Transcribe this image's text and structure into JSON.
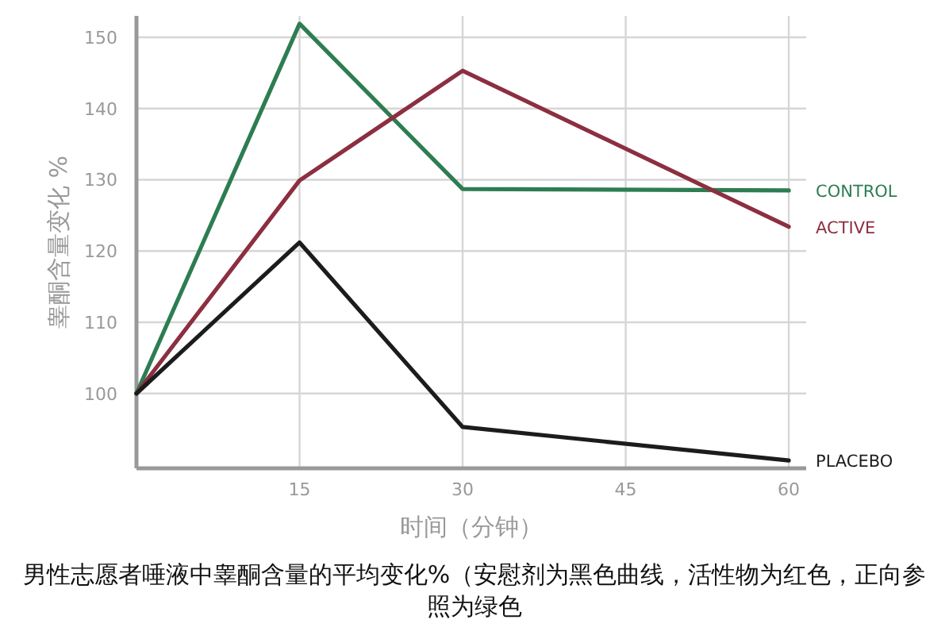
{
  "chart_data": {
    "type": "line",
    "xlabel": "时间（分钟）",
    "ylabel": "睾酮含量变化 %",
    "x": [
      0,
      15,
      30,
      60
    ],
    "series": [
      {
        "name": "CONTROL",
        "color": "#2e7d52",
        "values": [
          100,
          151.9,
          128.7,
          128.5
        ]
      },
      {
        "name": "ACTIVE",
        "color": "#8c2f40",
        "values": [
          100,
          129.9,
          145.3,
          123.4
        ]
      },
      {
        "name": "PLACEBO",
        "color": "#1c1c1c",
        "values": [
          100,
          121.2,
          95.3,
          90.6
        ]
      }
    ],
    "xlim": [
      0,
      61.6
    ],
    "ylim": [
      89.5,
      153
    ],
    "xticks": [
      15,
      30,
      45,
      60
    ],
    "yticks": [
      100,
      110,
      120,
      130,
      140,
      150
    ],
    "grid": true,
    "legend": "right",
    "marker": "none",
    "line_style": "solid",
    "annotations": [
      "男性志愿者唾液中睾酮含量的平均变化%（安慰剂为黑色曲线，活性物为红色，正向参照为绿色"
    ]
  }
}
